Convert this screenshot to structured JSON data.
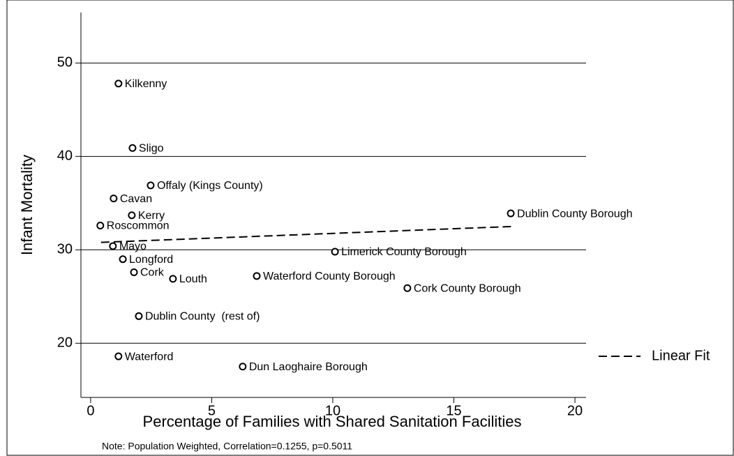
{
  "chart_data": {
    "type": "scatter",
    "x_label": "Percentage of Families with Shared Sanitation Facilities",
    "y_label": "Infant Mortality",
    "note": "Note: Population Weighted, Correlation=0.1255, p=0.5011",
    "xlim": [
      -0.4,
      20.46
    ],
    "ylim": [
      14.2,
      55.4
    ],
    "xticks": [
      0,
      5,
      10,
      15,
      20
    ],
    "yticks": [
      20,
      30,
      40,
      50
    ],
    "grid": true,
    "color": "#000000",
    "points": [
      {
        "label": "Kilkenny",
        "x": 1.15,
        "y": 47.8
      },
      {
        "label": "Sligo",
        "x": 1.73,
        "y": 40.9
      },
      {
        "label": "Offaly (Kings County)",
        "x": 2.48,
        "y": 36.9
      },
      {
        "label": "Cavan",
        "x": 0.95,
        "y": 35.5
      },
      {
        "label": "Kerry",
        "x": 1.7,
        "y": 33.7
      },
      {
        "label": "Roscommon",
        "x": 0.4,
        "y": 32.6
      },
      {
        "label": "Mayo",
        "x": 0.92,
        "y": 30.4
      },
      {
        "label": "Longford",
        "x": 1.33,
        "y": 29.0
      },
      {
        "label": "Cork",
        "x": 1.79,
        "y": 27.6
      },
      {
        "label": "Louth",
        "x": 3.4,
        "y": 26.9
      },
      {
        "label": "Waterford County Borough",
        "x": 6.86,
        "y": 27.2
      },
      {
        "label": "Limerick County Borough",
        "x": 10.09,
        "y": 29.8
      },
      {
        "label": "Cork County Borough",
        "x": 13.08,
        "y": 25.9
      },
      {
        "label": "Dublin County Borough",
        "x": 17.35,
        "y": 33.9
      },
      {
        "label": "Dublin County  (rest of)",
        "x": 1.99,
        "y": 22.9
      },
      {
        "label": "Waterford",
        "x": 1.15,
        "y": 18.6
      },
      {
        "label": "Dun Laoghaire Borough",
        "x": 6.28,
        "y": 17.5
      }
    ],
    "fit": {
      "name": "Linear Fit",
      "x": [
        0.43,
        17.4
      ],
      "y": [
        30.8,
        32.5
      ]
    }
  }
}
